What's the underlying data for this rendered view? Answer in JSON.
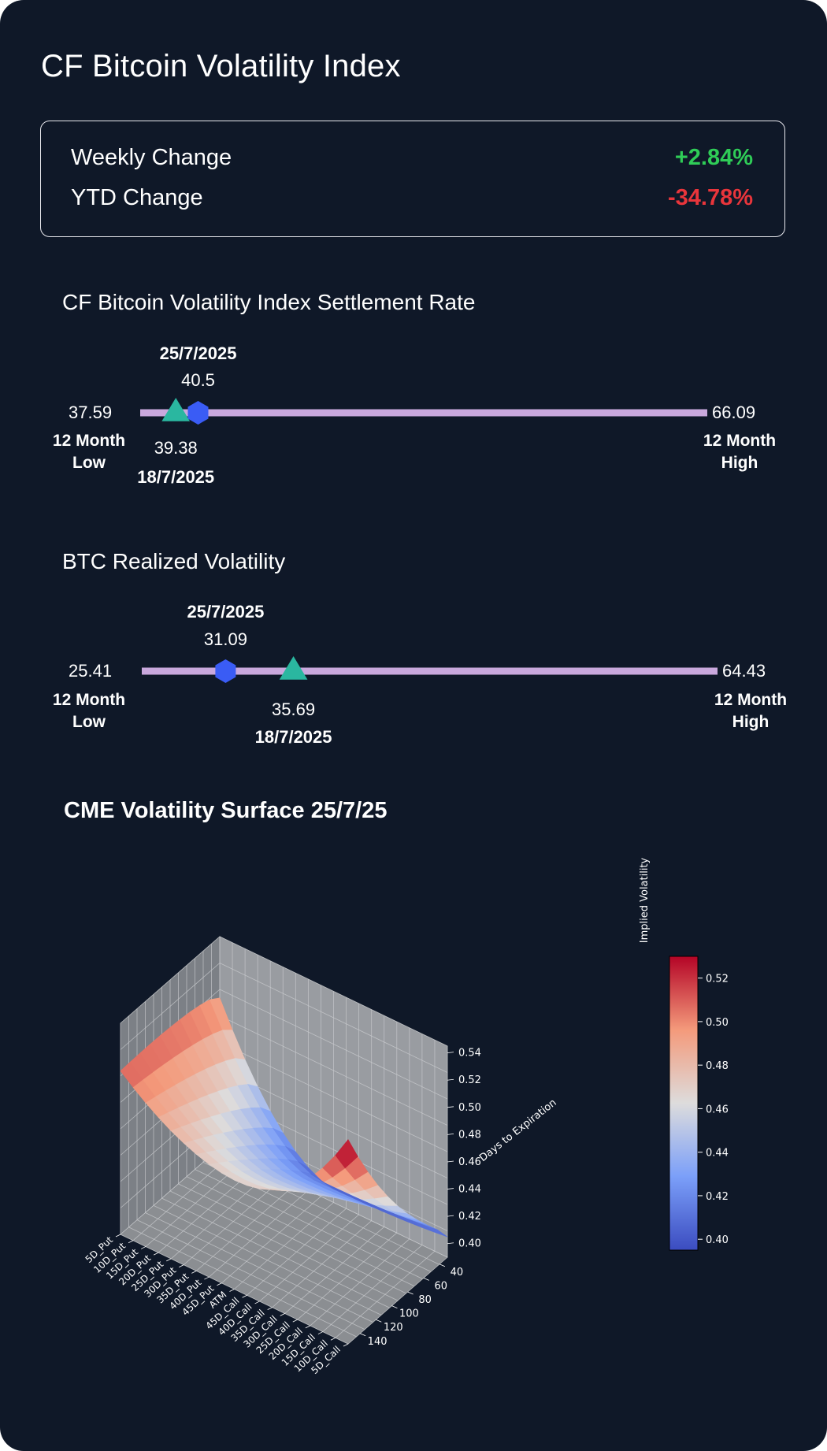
{
  "header": {
    "title": "CF Bitcoin Volatility Index"
  },
  "changes": {
    "weekly_label": "Weekly Change",
    "weekly_value": "+2.84%",
    "ytd_label": "YTD Change",
    "ytd_value": "-34.78%"
  },
  "colors": {
    "background": "#0f1828",
    "positive": "#2fcc57",
    "negative": "#e9353b",
    "range_bar": "#c9a8dd",
    "current_marker": "#3a5cf5",
    "prior_marker": "#2ab7a0"
  },
  "bvx_range": {
    "title": "CF Bitcoin Volatility Index Settlement Rate",
    "low": 37.59,
    "high": 66.09,
    "low_label": "12 Month Low",
    "high_label": "12 Month High",
    "current": {
      "date": "25/7/2025",
      "value": 40.5,
      "marker": "hexagon"
    },
    "prior": {
      "date": "18/7/2025",
      "value": 39.38,
      "marker": "triangle"
    }
  },
  "rv_range": {
    "title": "BTC Realized Volatility",
    "low": 25.41,
    "high": 64.43,
    "low_label": "12 Month Low",
    "high_label": "12 Month High",
    "current": {
      "date": "25/7/2025",
      "value": 31.09,
      "marker": "hexagon"
    },
    "prior": {
      "date": "18/7/2025",
      "value": 35.69,
      "marker": "triangle"
    }
  },
  "chart_data": {
    "type": "surface",
    "title": "CME Volatility Surface 25/7/25",
    "x_categories": [
      "5D_Put",
      "10D_Put",
      "15D_Put",
      "20D_Put",
      "25D_Put",
      "30D_Put",
      "35D_Put",
      "40D_Put",
      "45D_Put",
      "ATM",
      "45D_Call",
      "40D_Call",
      "35D_Call",
      "30D_Call",
      "25D_Call",
      "20D_Call",
      "15D_Call",
      "10D_Call",
      "5D_Call"
    ],
    "ylabel": "Days to Expiration",
    "y_ticks": [
      40,
      60,
      80,
      100,
      120,
      140
    ],
    "y_range": [
      30,
      155
    ],
    "zlabel": "Implied Volatility",
    "z_ticks": [
      "0.40",
      "0.42",
      "0.44",
      "0.46",
      "0.48",
      "0.50",
      "0.52",
      "0.54"
    ],
    "z_range": [
      0.39,
      0.545
    ],
    "colorbar_ticks": [
      "0.40",
      "0.42",
      "0.44",
      "0.46",
      "0.48",
      "0.50",
      "0.52"
    ],
    "colorbar_range": [
      0.395,
      0.53
    ],
    "colormap": "coolwarm",
    "approx_values": {
      "min_iv_atm_short_dated": 0.4,
      "iv_5D_put_short_dated": 0.5,
      "iv_5D_call_long_dated": 0.54,
      "iv_5D_put_long_dated": 0.51,
      "iv_atm_long_dated": 0.47
    }
  }
}
